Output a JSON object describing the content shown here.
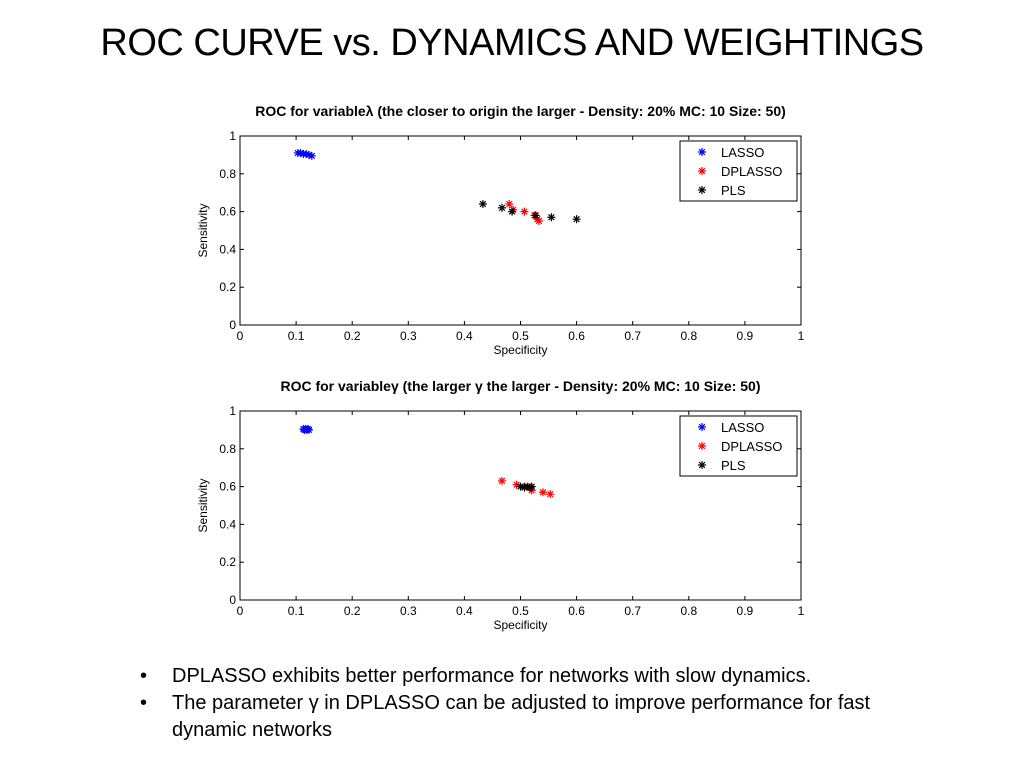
{
  "slide": {
    "title": "ROC CURVE vs. DYNAMICS AND WEIGHTINGS",
    "bullets": [
      "DPLASSO exhibits better performance for networks with slow dynamics.",
      "The parameter γ in DPLASSO can be adjusted to improve performance for fast dynamic networks"
    ]
  },
  "colors": {
    "LASSO": "#0000ff",
    "DPLASSO": "#ff0000",
    "PLS": "#000000"
  },
  "chart_data": [
    {
      "type": "scatter",
      "title": "ROC for variableλ (the closer to origin the larger - Density: 20% MC: 10 Size: 50)",
      "xlabel": "Specificity",
      "ylabel": "Sensitivity",
      "xlim": [
        0,
        1
      ],
      "ylim": [
        0,
        1
      ],
      "xticks": [
        "0",
        "0.1",
        "0.2",
        "0.3",
        "0.4",
        "0.5",
        "0.6",
        "0.7",
        "0.8",
        "0.9",
        "1"
      ],
      "yticks": [
        "0",
        "0.2",
        "0.4",
        "0.6",
        "0.8",
        "1"
      ],
      "grid": false,
      "legend_position": "top-right",
      "series": [
        {
          "name": "LASSO",
          "x": [
            0.103,
            0.108,
            0.113,
            0.118,
            0.123,
            0.128
          ],
          "y": [
            0.91,
            0.91,
            0.905,
            0.905,
            0.9,
            0.895
          ]
        },
        {
          "name": "DPLASSO",
          "x": [
            0.48,
            0.487,
            0.507,
            0.525,
            0.53,
            0.533
          ],
          "y": [
            0.64,
            0.61,
            0.6,
            0.58,
            0.56,
            0.55
          ]
        },
        {
          "name": "PLS",
          "x": [
            0.433,
            0.467,
            0.485,
            0.527,
            0.555,
            0.6
          ],
          "y": [
            0.64,
            0.62,
            0.6,
            0.58,
            0.57,
            0.56
          ]
        }
      ]
    },
    {
      "type": "scatter",
      "title": "ROC for variableγ (the larger γ the larger - Density: 20% MC: 10 Size: 50)",
      "xlabel": "Specificity",
      "ylabel": "Sensitivity",
      "xlim": [
        0,
        1
      ],
      "ylim": [
        0,
        1
      ],
      "xticks": [
        "0",
        "0.1",
        "0.2",
        "0.3",
        "0.4",
        "0.5",
        "0.6",
        "0.7",
        "0.8",
        "0.9",
        "1"
      ],
      "yticks": [
        "0",
        "0.2",
        "0.4",
        "0.6",
        "0.8",
        "1"
      ],
      "grid": false,
      "legend_position": "top-right",
      "series": [
        {
          "name": "LASSO",
          "x": [
            0.113,
            0.115,
            0.117,
            0.119,
            0.121,
            0.123
          ],
          "y": [
            0.905,
            0.9,
            0.905,
            0.9,
            0.905,
            0.9
          ]
        },
        {
          "name": "DPLASSO",
          "x": [
            0.467,
            0.493,
            0.507,
            0.52,
            0.54,
            0.553
          ],
          "y": [
            0.63,
            0.61,
            0.6,
            0.58,
            0.57,
            0.56
          ]
        },
        {
          "name": "PLS",
          "x": [
            0.5,
            0.507,
            0.513,
            0.517,
            0.52
          ],
          "y": [
            0.6,
            0.595,
            0.6,
            0.595,
            0.6
          ]
        }
      ]
    }
  ]
}
